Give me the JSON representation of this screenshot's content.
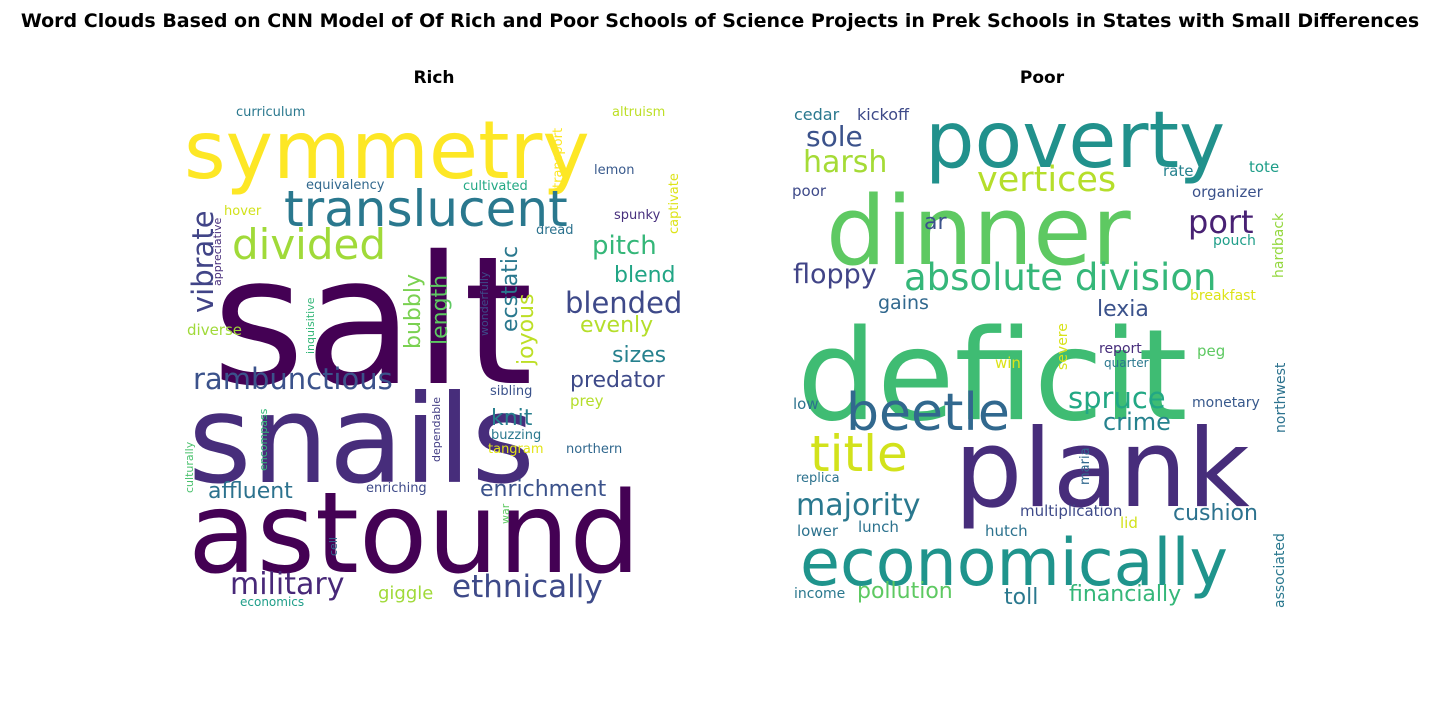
{
  "figure": {
    "title": "Word Clouds Based on CNN Model of Of Rich and Poor Schools of Science Projects in Prek Schools in States with Small Differences"
  },
  "chart_data": [
    {
      "type": "wordcloud",
      "title": "Rich",
      "words": [
        {
          "text": "salt",
          "color": "#440154"
        },
        {
          "text": "snails",
          "color": "#472d7b"
        },
        {
          "text": "astound",
          "color": "#440154"
        },
        {
          "text": "symmetry",
          "color": "#fde725"
        },
        {
          "text": "translucent",
          "color": "#2a788e"
        },
        {
          "text": "divided",
          "color": "#a0da39"
        },
        {
          "text": "rambunctious",
          "color": "#3b528b"
        },
        {
          "text": "military",
          "color": "#482878"
        },
        {
          "text": "ethnically",
          "color": "#3e4a89"
        },
        {
          "text": "blended",
          "color": "#3e4989"
        },
        {
          "text": "pitch",
          "color": "#35b779"
        },
        {
          "text": "blend",
          "color": "#21a585"
        },
        {
          "text": "vibrate",
          "color": "#414487"
        },
        {
          "text": "evenly",
          "color": "#b5de2b"
        },
        {
          "text": "sizes",
          "color": "#26818e"
        },
        {
          "text": "predator",
          "color": "#3e4a89"
        },
        {
          "text": "enrichment",
          "color": "#3b528b"
        },
        {
          "text": "affluent",
          "color": "#2c728e"
        },
        {
          "text": "ecstatic",
          "color": "#2a788e"
        },
        {
          "text": "length",
          "color": "#5ec962"
        },
        {
          "text": "bubbly",
          "color": "#7ad151"
        },
        {
          "text": "joyous",
          "color": "#bddf26"
        },
        {
          "text": "knit",
          "color": "#277f8e"
        },
        {
          "text": "giggle",
          "color": "#a0da39"
        },
        {
          "text": "curriculum",
          "color": "#2a788e"
        },
        {
          "text": "altruism",
          "color": "#bddf26"
        },
        {
          "text": "transport",
          "color": "#fde725"
        },
        {
          "text": "lemon",
          "color": "#38598c"
        },
        {
          "text": "captivate",
          "color": "#dde318"
        },
        {
          "text": "equivalency",
          "color": "#31688e"
        },
        {
          "text": "cultivated",
          "color": "#22a884"
        },
        {
          "text": "spunky",
          "color": "#472f7d"
        },
        {
          "text": "dread",
          "color": "#2c728e"
        },
        {
          "text": "hover",
          "color": "#d2e21b"
        },
        {
          "text": "appreciative",
          "color": "#472d7b"
        },
        {
          "text": "inquisitive",
          "color": "#35b779"
        },
        {
          "text": "wonderfully",
          "color": "#3e4a89"
        },
        {
          "text": "diverse",
          "color": "#a0da39"
        },
        {
          "text": "sibling",
          "color": "#3b528b"
        },
        {
          "text": "dependable",
          "color": "#433e85"
        },
        {
          "text": "prey",
          "color": "#b5de2b"
        },
        {
          "text": "buzzing",
          "color": "#2a788e"
        },
        {
          "text": "tangram",
          "color": "#e2e418"
        },
        {
          "text": "northern",
          "color": "#31688e"
        },
        {
          "text": "encompass",
          "color": "#35b779"
        },
        {
          "text": "culturally",
          "color": "#4ac16d"
        },
        {
          "text": "enriching",
          "color": "#3e4a89"
        },
        {
          "text": "war",
          "color": "#5ec962"
        },
        {
          "text": "cell",
          "color": "#31688e"
        },
        {
          "text": "economics",
          "color": "#1f9e89"
        }
      ]
    },
    {
      "type": "wordcloud",
      "title": "Poor",
      "words": [
        {
          "text": "deficit",
          "color": "#3fbc73"
        },
        {
          "text": "dinner",
          "color": "#5ec962"
        },
        {
          "text": "plank",
          "color": "#472d7b"
        },
        {
          "text": "poverty",
          "color": "#21918c"
        },
        {
          "text": "economically",
          "color": "#1f948c"
        },
        {
          "text": "beetle",
          "color": "#31688e"
        },
        {
          "text": "title",
          "color": "#d2e21b"
        },
        {
          "text": "absolute division",
          "color": "#35b779"
        },
        {
          "text": "vertices",
          "color": "#b5de2b"
        },
        {
          "text": "majority",
          "color": "#2a788e"
        },
        {
          "text": "harsh",
          "color": "#a5db36"
        },
        {
          "text": "sole",
          "color": "#3b528b"
        },
        {
          "text": "port",
          "color": "#482173"
        },
        {
          "text": "floppy",
          "color": "#414487"
        },
        {
          "text": "spruce",
          "color": "#22a884"
        },
        {
          "text": "crime",
          "color": "#26828e"
        },
        {
          "text": "cushion",
          "color": "#2c728e"
        },
        {
          "text": "pollution",
          "color": "#5ec962"
        },
        {
          "text": "financially",
          "color": "#35b779"
        },
        {
          "text": "toll",
          "color": "#2a788e"
        },
        {
          "text": "lexia",
          "color": "#3b528b"
        },
        {
          "text": "gains",
          "color": "#31688e"
        },
        {
          "text": "ar",
          "color": "#3b528b"
        },
        {
          "text": "cedar",
          "color": "#2a788e"
        },
        {
          "text": "kickoff",
          "color": "#3e4a89"
        },
        {
          "text": "rate",
          "color": "#26828e"
        },
        {
          "text": "tote",
          "color": "#1f9e89"
        },
        {
          "text": "organizer",
          "color": "#3b528b"
        },
        {
          "text": "pouch",
          "color": "#1f9e89"
        },
        {
          "text": "hardback",
          "color": "#95d840"
        },
        {
          "text": "breakfast",
          "color": "#dde318"
        },
        {
          "text": "poor",
          "color": "#3e4a89"
        },
        {
          "text": "severe",
          "color": "#d8e219"
        },
        {
          "text": "win",
          "color": "#dde318"
        },
        {
          "text": "report",
          "color": "#472d7b"
        },
        {
          "text": "quarter",
          "color": "#2a788e"
        },
        {
          "text": "peg",
          "color": "#5ec962"
        },
        {
          "text": "northwest",
          "color": "#2c728e"
        },
        {
          "text": "monetary",
          "color": "#38598c"
        },
        {
          "text": "low",
          "color": "#2c728e"
        },
        {
          "text": "maria",
          "color": "#31688e"
        },
        {
          "text": "replica",
          "color": "#2c728e"
        },
        {
          "text": "lower",
          "color": "#2c728e"
        },
        {
          "text": "lunch",
          "color": "#2c728e"
        },
        {
          "text": "hutch",
          "color": "#2c728e"
        },
        {
          "text": "multiplication",
          "color": "#3e4a89"
        },
        {
          "text": "lid",
          "color": "#d2e21b"
        },
        {
          "text": "associated",
          "color": "#2a788e"
        },
        {
          "text": "income",
          "color": "#2a788e"
        }
      ]
    }
  ]
}
